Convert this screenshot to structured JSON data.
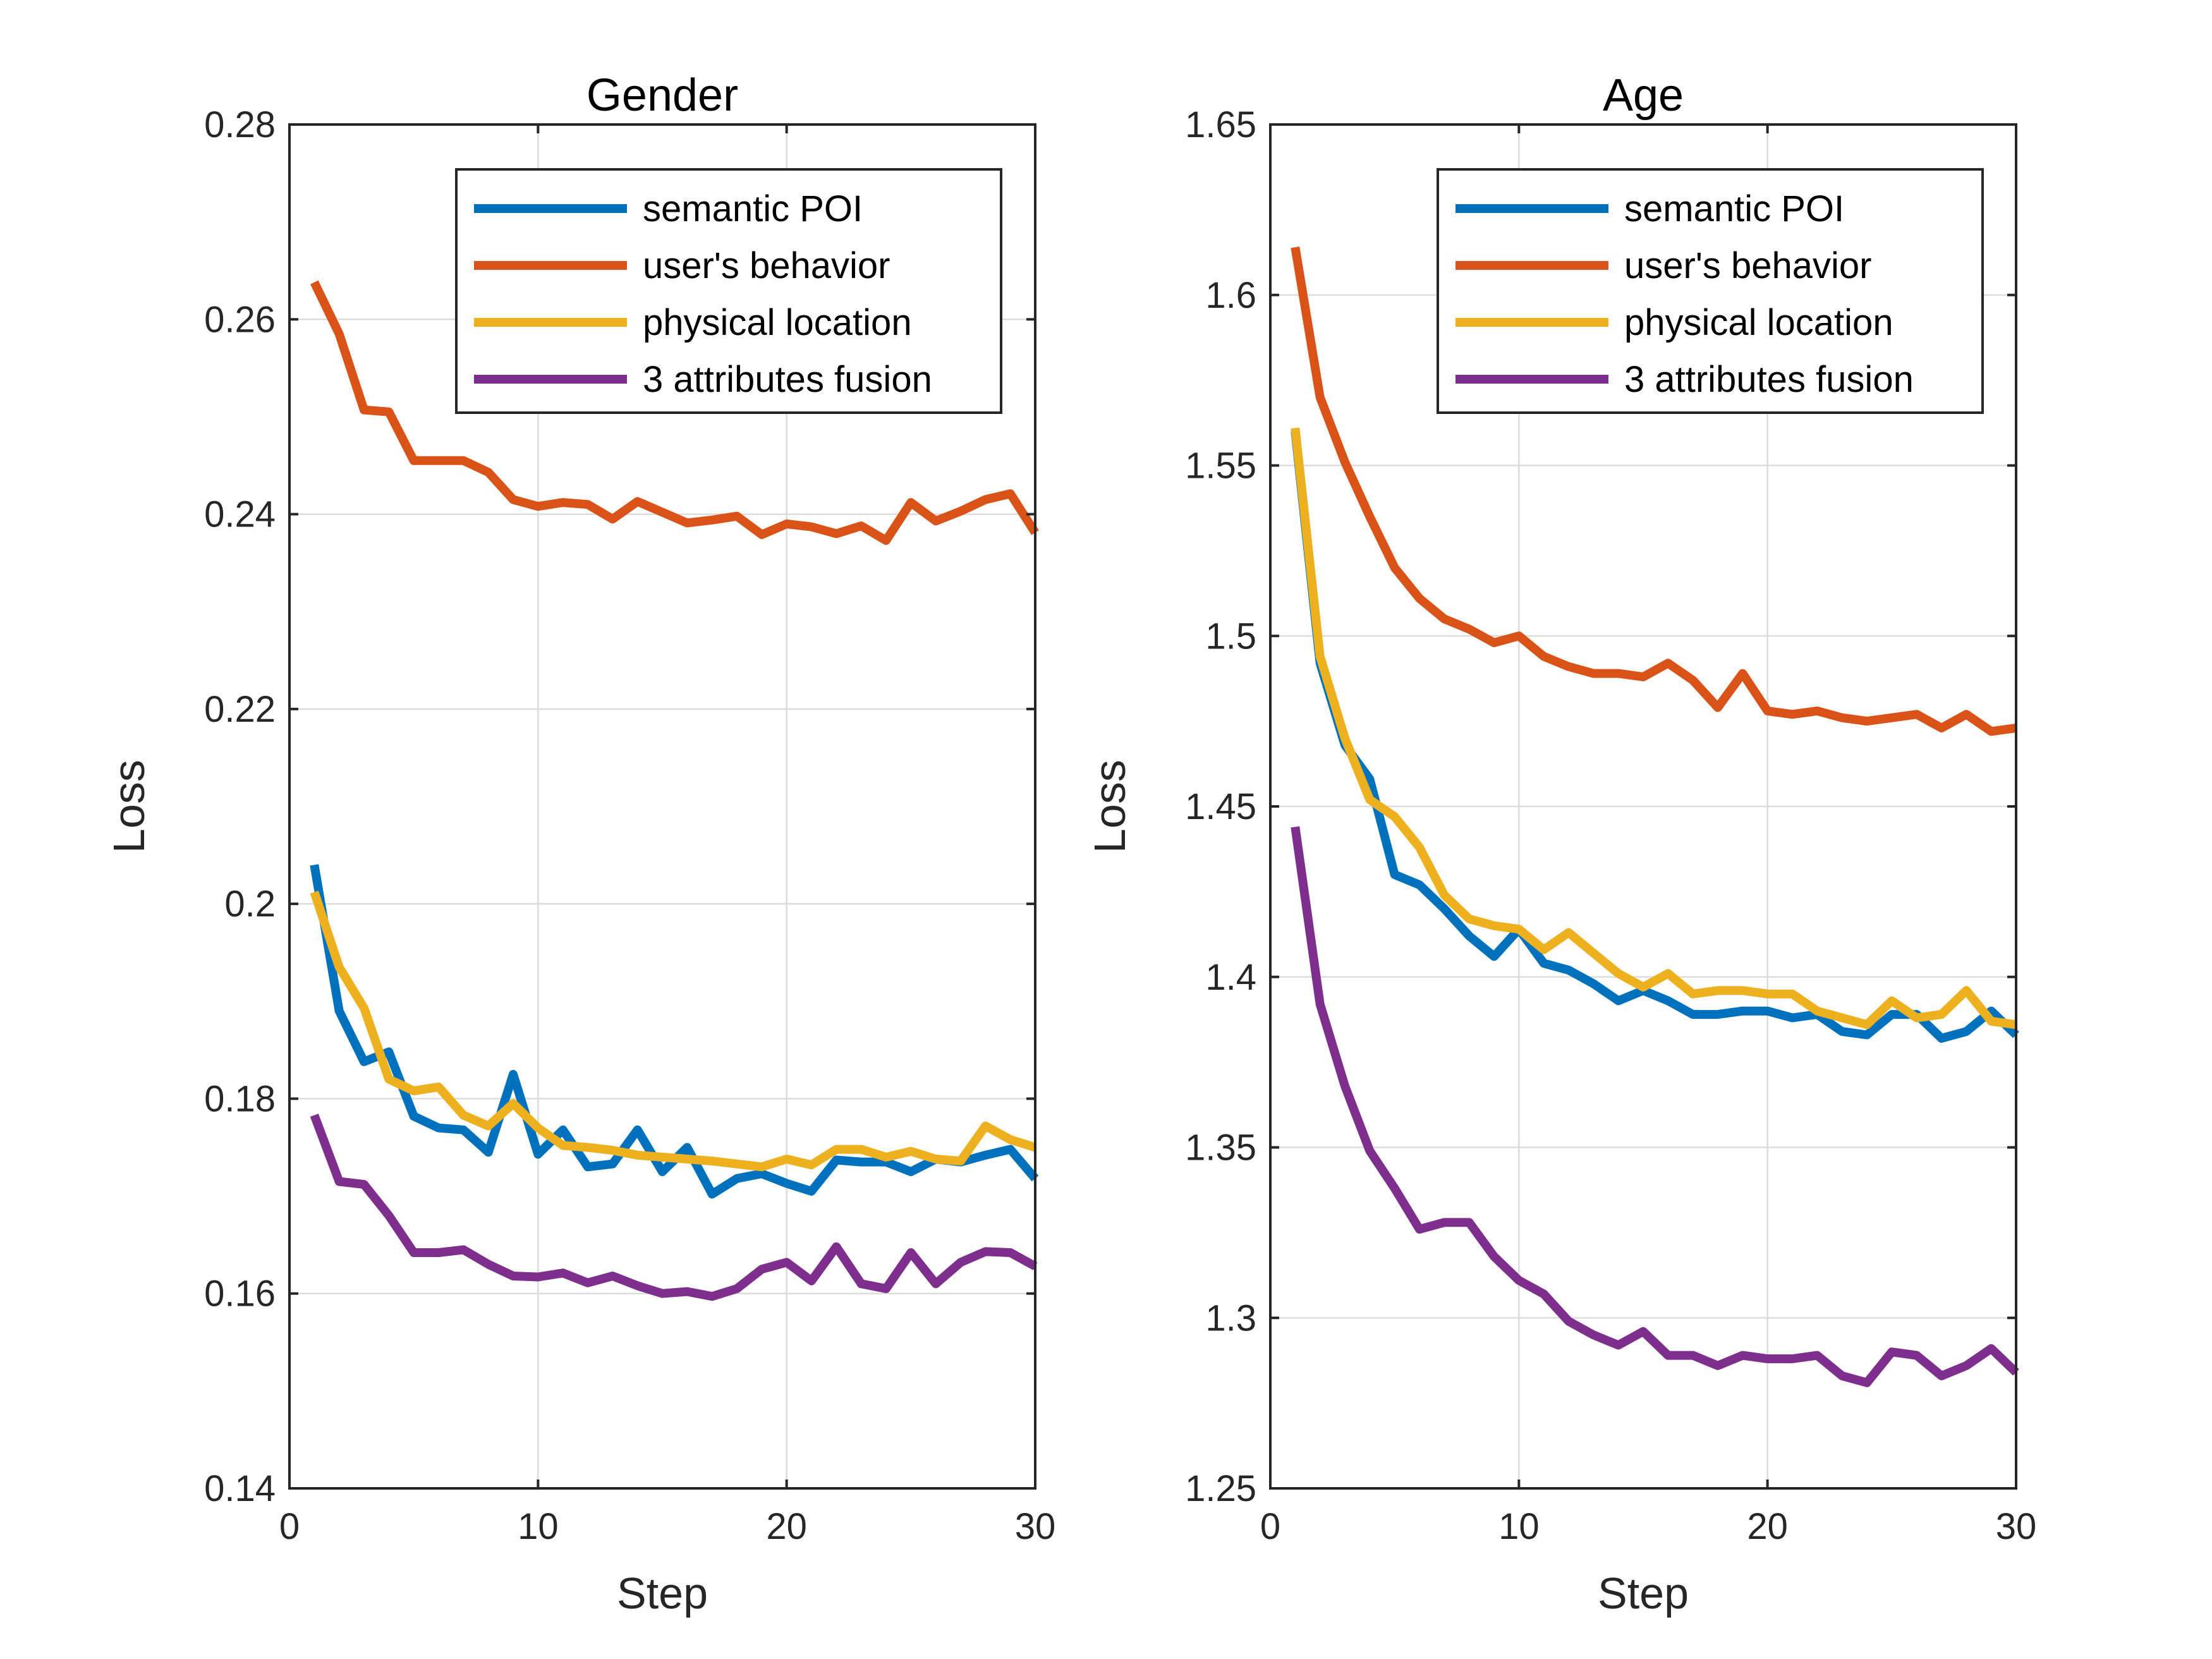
{
  "chart_data": [
    {
      "type": "line",
      "title": "Gender",
      "xlabel": "Step",
      "ylabel": "Loss",
      "xlim": [
        0,
        30
      ],
      "ylim": [
        0.14,
        0.28
      ],
      "xticks": [
        0,
        10,
        20,
        30
      ],
      "xtick_labels": [
        "0",
        "10",
        "20",
        "30"
      ],
      "yticks": [
        0.14,
        0.16,
        0.18,
        0.2,
        0.22,
        0.24,
        0.26,
        0.28
      ],
      "ytick_labels": [
        "0.14",
        "0.16",
        "0.18",
        "0.2",
        "0.22",
        "0.24",
        "0.26",
        "0.28"
      ],
      "grid": true,
      "legend_position": "top-right",
      "x": [
        1,
        2,
        3,
        4,
        5,
        6,
        7,
        8,
        9,
        10,
        11,
        12,
        13,
        14,
        15,
        16,
        17,
        18,
        19,
        20,
        21,
        22,
        23,
        24,
        25,
        26,
        27,
        28,
        29,
        30
      ],
      "series": [
        {
          "name": "semantic POI",
          "color": "#0072BD",
          "values": [
            0.204,
            0.189,
            0.1838,
            0.1848,
            0.1782,
            0.177,
            0.1768,
            0.1745,
            0.1825,
            0.1743,
            0.1768,
            0.173,
            0.1733,
            0.1768,
            0.1725,
            0.175,
            0.1702,
            0.1718,
            0.1723,
            0.1713,
            0.1705,
            0.1737,
            0.1735,
            0.1735,
            0.1725,
            0.1738,
            0.1735,
            0.1742,
            0.1748,
            0.1718
          ]
        },
        {
          "name": "user's behavior",
          "color": "#D95319",
          "values": [
            0.2638,
            0.2585,
            0.2507,
            0.2505,
            0.2455,
            0.2455,
            0.2455,
            0.2443,
            0.2415,
            0.2408,
            0.2412,
            0.241,
            0.2395,
            0.2413,
            0.2402,
            0.2391,
            0.2394,
            0.2398,
            0.2379,
            0.239,
            0.2387,
            0.238,
            0.2388,
            0.2373,
            0.2412,
            0.2393,
            0.2403,
            0.2415,
            0.2421,
            0.2381
          ]
        },
        {
          "name": "physical location",
          "color": "#EDB120",
          "values": [
            0.2012,
            0.1935,
            0.1893,
            0.182,
            0.1808,
            0.1812,
            0.1783,
            0.1772,
            0.1795,
            0.177,
            0.1752,
            0.175,
            0.1747,
            0.1742,
            0.174,
            0.1738,
            0.1736,
            0.1733,
            0.173,
            0.1738,
            0.1732,
            0.1748,
            0.1748,
            0.174,
            0.1746,
            0.1738,
            0.1736,
            0.1772,
            0.1758,
            0.175
          ]
        },
        {
          "name": "3 attributes fusion",
          "color": "#7E2F8E",
          "values": [
            0.1783,
            0.1715,
            0.1712,
            0.168,
            0.1642,
            0.1642,
            0.1645,
            0.163,
            0.1618,
            0.1617,
            0.1621,
            0.1611,
            0.1618,
            0.1608,
            0.16,
            0.1602,
            0.1597,
            0.1605,
            0.1625,
            0.1632,
            0.1613,
            0.1648,
            0.161,
            0.1605,
            0.1642,
            0.161,
            0.1632,
            0.1643,
            0.1642,
            0.1628
          ]
        }
      ]
    },
    {
      "type": "line",
      "title": "Age",
      "xlabel": "Step",
      "ylabel": "Loss",
      "xlim": [
        0,
        30
      ],
      "ylim": [
        1.25,
        1.65
      ],
      "xticks": [
        0,
        10,
        20,
        30
      ],
      "xtick_labels": [
        "0",
        "10",
        "20",
        "30"
      ],
      "yticks": [
        1.25,
        1.3,
        1.35,
        1.4,
        1.45,
        1.5,
        1.55,
        1.6,
        1.65
      ],
      "ytick_labels": [
        "1.25",
        "1.3",
        "1.35",
        "1.4",
        "1.45",
        "1.5",
        "1.55",
        "1.6",
        "1.65"
      ],
      "grid": true,
      "legend_position": "top-right",
      "x": [
        1,
        2,
        3,
        4,
        5,
        6,
        7,
        8,
        9,
        10,
        11,
        12,
        13,
        14,
        15,
        16,
        17,
        18,
        19,
        20,
        21,
        22,
        23,
        24,
        25,
        26,
        27,
        28,
        29,
        30
      ],
      "series": [
        {
          "name": "semantic POI",
          "color": "#0072BD",
          "values": [
            1.56,
            1.492,
            1.468,
            1.458,
            1.43,
            1.427,
            1.42,
            1.412,
            1.406,
            1.414,
            1.404,
            1.402,
            1.398,
            1.393,
            1.396,
            1.393,
            1.389,
            1.389,
            1.39,
            1.39,
            1.388,
            1.389,
            1.384,
            1.383,
            1.389,
            1.389,
            1.382,
            1.384,
            1.39,
            1.383
          ]
        },
        {
          "name": "user's behavior",
          "color": "#D95319",
          "values": [
            1.614,
            1.57,
            1.551,
            1.535,
            1.52,
            1.511,
            1.505,
            1.502,
            1.498,
            1.5,
            1.494,
            1.491,
            1.489,
            1.489,
            1.488,
            1.492,
            1.487,
            1.479,
            1.489,
            1.478,
            1.477,
            1.478,
            1.476,
            1.475,
            1.476,
            1.477,
            1.473,
            1.477,
            1.472,
            1.473
          ]
        },
        {
          "name": "physical location",
          "color": "#EDB120",
          "values": [
            1.561,
            1.494,
            1.47,
            1.452,
            1.447,
            1.438,
            1.424,
            1.417,
            1.415,
            1.414,
            1.408,
            1.413,
            1.407,
            1.401,
            1.397,
            1.401,
            1.395,
            1.396,
            1.396,
            1.395,
            1.395,
            1.39,
            1.388,
            1.386,
            1.393,
            1.388,
            1.389,
            1.396,
            1.387,
            1.386
          ]
        },
        {
          "name": "3 attributes fusion",
          "color": "#7E2F8E",
          "values": [
            1.444,
            1.392,
            1.368,
            1.349,
            1.338,
            1.326,
            1.328,
            1.328,
            1.318,
            1.311,
            1.307,
            1.299,
            1.295,
            1.292,
            1.296,
            1.289,
            1.289,
            1.286,
            1.289,
            1.288,
            1.288,
            1.289,
            1.283,
            1.281,
            1.29,
            1.289,
            1.283,
            1.286,
            1.291,
            1.284
          ]
        }
      ]
    }
  ]
}
